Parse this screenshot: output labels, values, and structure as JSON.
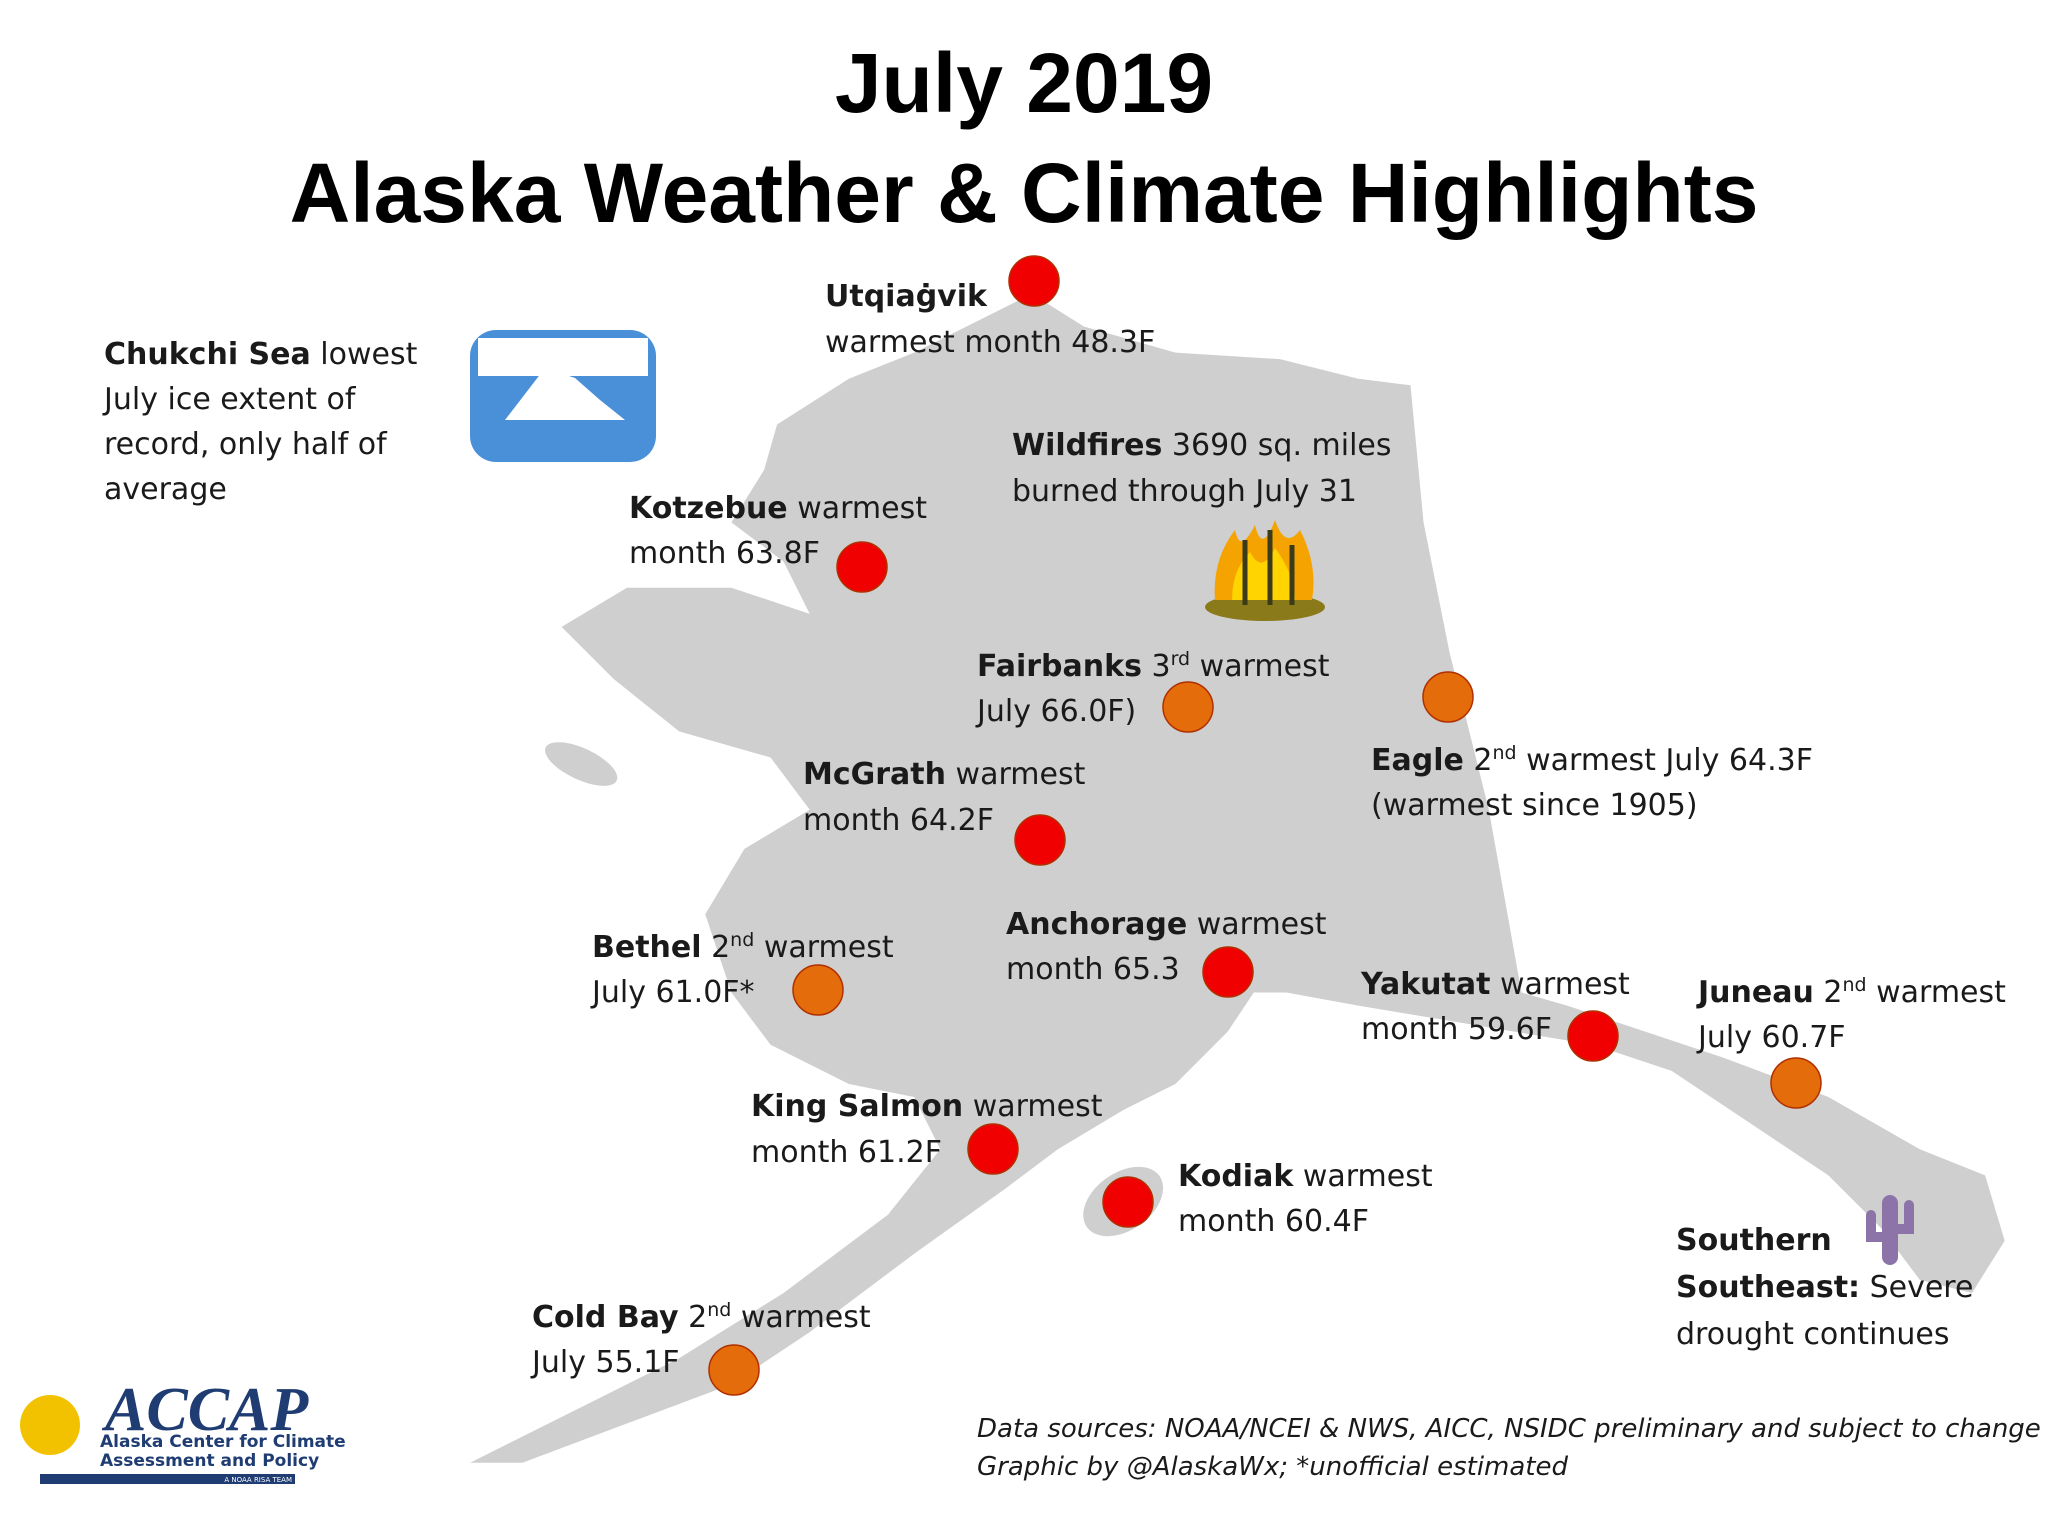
{
  "title": {
    "line1": "July 2019",
    "line2": "Alaska Weather & Climate Highlights"
  },
  "callouts": [
    {
      "lines": [
        [
          {
            "text": "Utqiaġvik",
            "bold": true
          }
        ],
        [
          {
            "text": "warmest month 48.3F"
          }
        ]
      ],
      "marker_color": "#f00000"
    },
    {
      "lines": [
        [
          {
            "text": "Chukchi Sea",
            "bold": true
          },
          {
            "text": " lowest"
          }
        ],
        [
          {
            "text": "July ice extent of"
          }
        ],
        [
          {
            "text": "record, only half of"
          }
        ],
        [
          {
            "text": "average"
          }
        ]
      ]
    },
    {
      "lines": [
        [
          {
            "text": "Kotzebue",
            "bold": true
          },
          {
            "text": " warmest"
          }
        ],
        [
          {
            "text": "month 63.8F"
          }
        ]
      ],
      "marker_color": "#f00000"
    },
    {
      "lines": [
        [
          {
            "text": "Wildfires",
            "bold": true
          },
          {
            "text": " 3690 sq. miles"
          }
        ],
        [
          {
            "text": "burned through July 31"
          }
        ]
      ]
    },
    {
      "lines": [
        [
          {
            "text": "Fairbanks",
            "bold": true
          },
          {
            "text": " 3"
          },
          {
            "text": "rd",
            "sup": true
          },
          {
            "text": " warmest"
          }
        ],
        [
          {
            "text": "July 66.0F)"
          }
        ]
      ],
      "marker_color": "#e46c0a"
    },
    {
      "lines": [
        [
          {
            "text": "Eagle",
            "bold": true
          },
          {
            "text": " 2"
          },
          {
            "text": "nd",
            "sup": true
          },
          {
            "text": " warmest July 64.3F"
          }
        ],
        [
          {
            "text": "(warmest since 1905)"
          }
        ]
      ],
      "marker_color": "#e46c0a"
    },
    {
      "lines": [
        [
          {
            "text": "McGrath",
            "bold": true
          },
          {
            "text": " warmest"
          }
        ],
        [
          {
            "text": "month 64.2F"
          }
        ]
      ],
      "marker_color": "#f00000"
    },
    {
      "lines": [
        [
          {
            "text": "Bethel",
            "bold": true
          },
          {
            "text": " 2"
          },
          {
            "text": "nd",
            "sup": true
          },
          {
            "text": " warmest"
          }
        ],
        [
          {
            "text": "July 61.0F*"
          }
        ]
      ],
      "marker_color": "#e46c0a"
    },
    {
      "lines": [
        [
          {
            "text": "Anchorage",
            "bold": true
          },
          {
            "text": " warmest"
          }
        ],
        [
          {
            "text": "month 65.3"
          }
        ]
      ],
      "marker_color": "#f00000"
    },
    {
      "lines": [
        [
          {
            "text": "Yakutat",
            "bold": true
          },
          {
            "text": " warmest"
          }
        ],
        [
          {
            "text": "month 59.6F"
          }
        ]
      ],
      "marker_color": "#f00000"
    },
    {
      "lines": [
        [
          {
            "text": "Juneau",
            "bold": true
          },
          {
            "text": " 2"
          },
          {
            "text": "nd",
            "sup": true
          },
          {
            "text": " warmest"
          }
        ],
        [
          {
            "text": "July 60.7F"
          }
        ]
      ],
      "marker_color": "#e46c0a"
    },
    {
      "lines": [
        [
          {
            "text": "King Salmon",
            "bold": true
          },
          {
            "text": " warmest"
          }
        ],
        [
          {
            "text": "month 61.2F"
          }
        ]
      ],
      "marker_color": "#f00000"
    },
    {
      "lines": [
        [
          {
            "text": "Kodiak",
            "bold": true
          },
          {
            "text": " warmest"
          }
        ],
        [
          {
            "text": "month 60.4F"
          }
        ]
      ],
      "marker_color": "#f00000"
    },
    {
      "lines": [
        [
          {
            "text": "Southern",
            "bold": true
          }
        ],
        [
          {
            "text": "Southeast:",
            "bold": true
          },
          {
            "text": " Severe"
          }
        ],
        [
          {
            "text": "drought continues"
          }
        ]
      ]
    },
    {
      "lines": [
        [
          {
            "text": "Cold Bay",
            "bold": true
          },
          {
            "text": " 2"
          },
          {
            "text": "nd",
            "sup": true
          },
          {
            "text": " warmest"
          }
        ],
        [
          {
            "text": "July 55.1F"
          }
        ]
      ],
      "marker_color": "#e46c0a"
    }
  ],
  "sources": [
    "Data sources: NOAA/NCEI & NWS, AICC, NSIDC preliminary and subject to change",
    "Graphic by @AlaskaWx; *unofficial estimated"
  ],
  "logo": {
    "name": "ACCAP",
    "line1": "Alaska Center for Climate",
    "line2": "Assessment and Policy",
    "tag": "A NOAA RISA TEAM"
  }
}
